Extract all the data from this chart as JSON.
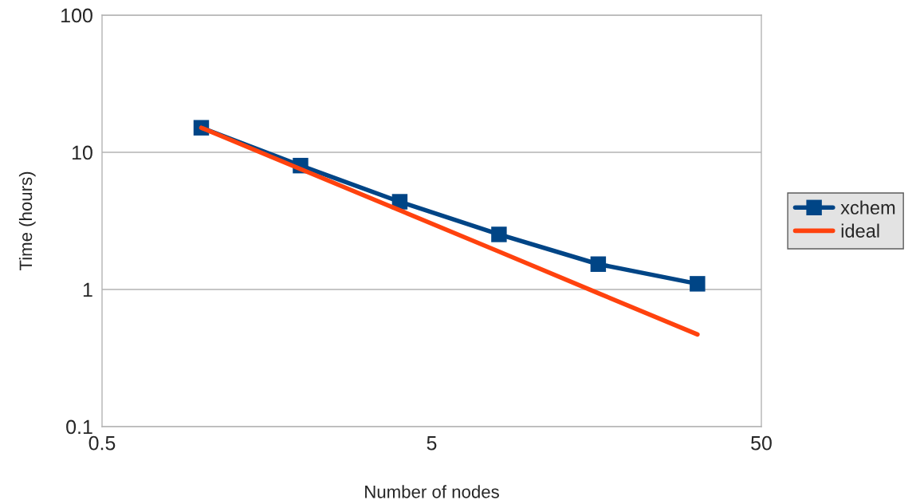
{
  "chart_data": {
    "type": "line",
    "xlabel": "Number of nodes",
    "ylabel": "Time (hours)",
    "log": "xy",
    "x": [
      1,
      2,
      4,
      8,
      16,
      32
    ],
    "series": [
      {
        "name": "xchem",
        "color": "#004586",
        "values": [
          15.1,
          8.0,
          4.36,
          2.52,
          1.53,
          1.1
        ],
        "marker": "square"
      },
      {
        "name": "ideal",
        "color": "#ff420e",
        "values": [
          15.1,
          7.55,
          3.78,
          1.89,
          0.94,
          0.47
        ],
        "marker": "none"
      }
    ],
    "xlim": [
      0.5,
      50
    ],
    "xticks": [
      0.5,
      5,
      50
    ],
    "ylim": [
      0.1,
      100
    ],
    "yticks": [
      0.1,
      1,
      10,
      100
    ],
    "grid": "y",
    "legend": "right"
  }
}
